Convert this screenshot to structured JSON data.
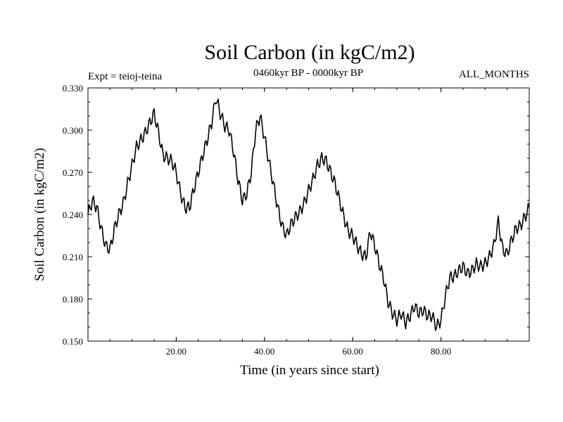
{
  "chart_data": {
    "type": "line",
    "title": "Soil Carbon (in kgC/m2)",
    "subtitle": "0460kyr BP - 0000kyr BP",
    "left_note": "Expt = teioj-teina",
    "right_note": "ALL_MONTHS",
    "xlabel": "Time (in years since start)",
    "ylabel": "Soil Carbon (in kgC/m2)",
    "xlim": [
      0,
      100
    ],
    "ylim": [
      0.15,
      0.33
    ],
    "x_ticks": [
      20,
      40,
      60,
      80
    ],
    "x_tick_labels": [
      "20.00",
      "40.00",
      "60.00",
      "80.00"
    ],
    "y_ticks": [
      0.15,
      0.18,
      0.21,
      0.24,
      0.27,
      0.3,
      0.33
    ],
    "y_tick_labels": [
      "0.150",
      "0.180",
      "0.210",
      "0.240",
      "0.270",
      "0.300",
      "0.330"
    ],
    "series": [
      {
        "name": "Soil Carbon",
        "x": [
          0,
          1,
          2,
          3,
          4,
          5,
          6,
          7,
          8,
          9,
          10,
          11,
          12,
          13,
          14,
          15,
          16,
          17,
          18,
          19,
          20,
          21,
          22,
          23,
          24,
          25,
          26,
          27,
          28,
          29,
          30,
          31,
          32,
          33,
          34,
          35,
          36,
          37,
          38,
          39,
          40,
          41,
          42,
          43,
          44,
          45,
          46,
          47,
          48,
          49,
          50,
          51,
          52,
          53,
          54,
          55,
          56,
          57,
          58,
          59,
          60,
          61,
          62,
          63,
          64,
          65,
          66,
          67,
          68,
          69,
          70,
          71,
          72,
          73,
          74,
          75,
          76,
          77,
          78,
          79,
          80,
          81,
          82,
          83,
          84,
          85,
          86,
          87,
          88,
          89,
          90,
          91,
          92,
          93,
          94,
          95,
          96,
          97,
          98,
          99,
          100
        ],
        "values": [
          0.24,
          0.25,
          0.245,
          0.23,
          0.218,
          0.215,
          0.23,
          0.24,
          0.248,
          0.262,
          0.275,
          0.288,
          0.293,
          0.298,
          0.305,
          0.312,
          0.298,
          0.282,
          0.28,
          0.278,
          0.27,
          0.255,
          0.245,
          0.245,
          0.258,
          0.27,
          0.282,
          0.293,
          0.305,
          0.323,
          0.312,
          0.303,
          0.3,
          0.285,
          0.265,
          0.25,
          0.255,
          0.27,
          0.3,
          0.31,
          0.295,
          0.278,
          0.262,
          0.245,
          0.232,
          0.225,
          0.233,
          0.238,
          0.242,
          0.248,
          0.257,
          0.265,
          0.275,
          0.28,
          0.278,
          0.27,
          0.262,
          0.25,
          0.238,
          0.228,
          0.225,
          0.218,
          0.212,
          0.21,
          0.228,
          0.218,
          0.205,
          0.195,
          0.178,
          0.17,
          0.165,
          0.17,
          0.163,
          0.168,
          0.175,
          0.17,
          0.172,
          0.168,
          0.168,
          0.16,
          0.165,
          0.182,
          0.195,
          0.196,
          0.2,
          0.203,
          0.198,
          0.2,
          0.205,
          0.203,
          0.205,
          0.21,
          0.218,
          0.235,
          0.215,
          0.212,
          0.222,
          0.23,
          0.232,
          0.238,
          0.245
        ]
      }
    ]
  }
}
